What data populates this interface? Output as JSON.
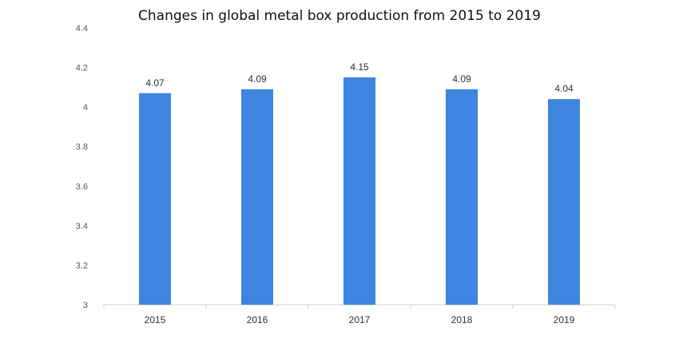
{
  "chart_data": {
    "type": "bar",
    "title": "Changes in global metal box production from 2015 to 2019",
    "categories": [
      "2015",
      "2016",
      "2017",
      "2018",
      "2019"
    ],
    "values": [
      4.07,
      4.09,
      4.15,
      4.09,
      4.04
    ],
    "data_labels": [
      "4.07",
      "4.09",
      "4.15",
      "4.09",
      "4.04"
    ],
    "yticks": [
      "3",
      "3.2",
      "3.4",
      "3.6",
      "3.8",
      "4",
      "4.2",
      "4.4"
    ],
    "ylim": [
      3,
      4.4
    ],
    "xlabel": "",
    "ylabel": "",
    "grid": false,
    "legend": "none",
    "bar_color": "#3f85e0"
  }
}
